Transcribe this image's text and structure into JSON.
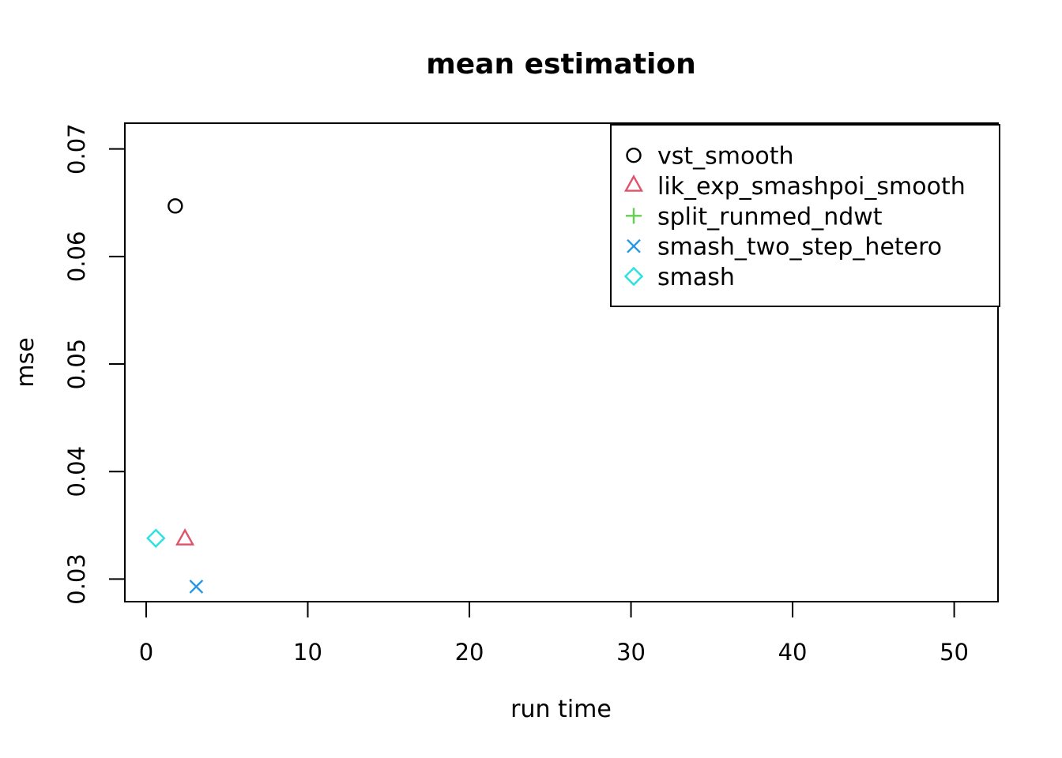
{
  "chart_data": {
    "type": "scatter",
    "title": "mean estimation",
    "xlabel": "run time",
    "ylabel": "mse",
    "xlim": [
      -1.32,
      52.71
    ],
    "ylim": [
      0.0279,
      0.0724
    ],
    "x_ticks": [
      0,
      10,
      20,
      30,
      40,
      50
    ],
    "x_tick_labels": [
      "0",
      "10",
      "20",
      "30",
      "40",
      "50"
    ],
    "y_ticks": [
      0.03,
      0.04,
      0.05,
      0.06,
      0.07
    ],
    "y_tick_labels": [
      "0.03",
      "0.04",
      "0.05",
      "0.06",
      "0.07"
    ],
    "grid": false,
    "legend_position": "top-right",
    "series": [
      {
        "name": "vst_smooth",
        "marker": "circle",
        "color": "#000000",
        "points": [
          {
            "x": 1.8,
            "y": 0.0647
          }
        ]
      },
      {
        "name": "lik_exp_smashpoi_smooth",
        "marker": "triangle-up",
        "color": "#DF536B",
        "points": [
          {
            "x": 2.4,
            "y": 0.0337
          }
        ]
      },
      {
        "name": "split_runmed_ndwt",
        "marker": "plus",
        "color": "#61D04F",
        "points": []
      },
      {
        "name": "smash_two_step_hetero",
        "marker": "x",
        "color": "#2297E6",
        "points": [
          {
            "x": 3.1,
            "y": 0.0293
          }
        ]
      },
      {
        "name": "smash",
        "marker": "diamond",
        "color": "#28E2E5",
        "points": [
          {
            "x": 0.6,
            "y": 0.0338
          }
        ]
      }
    ]
  }
}
